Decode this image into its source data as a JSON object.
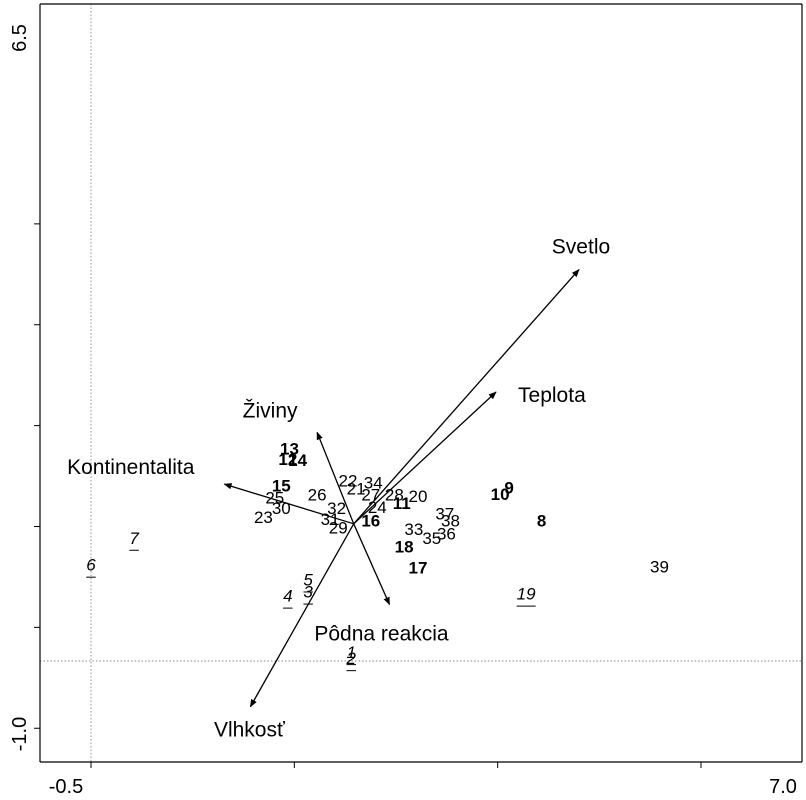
{
  "chart_data": {
    "type": "scatter",
    "subtype": "ordination-biplot",
    "xlim": [
      -0.5,
      7.0
    ],
    "ylim": [
      -1.0,
      6.5
    ],
    "x_tick_labels": [
      "-0.5",
      "7.0"
    ],
    "y_tick_labels": [
      "-1.0",
      "6.5"
    ],
    "origin": [
      2.73,
      2.04
    ],
    "reference_lines": {
      "x": -0.5,
      "y": 0.0
    },
    "vectors": [
      {
        "label": "Svetlo",
        "x": 5.5,
        "y": 5.82
      },
      {
        "label": "Teplota",
        "x": 4.48,
        "y": 4.0
      },
      {
        "label": "Živiny",
        "x": 2.28,
        "y": 3.4
      },
      {
        "label": "Kontinentalita",
        "x": 1.14,
        "y": 2.63
      },
      {
        "label": "Pôdna reakcia",
        "x": 3.17,
        "y": 0.84
      },
      {
        "label": "Vlhkosť",
        "x": 1.46,
        "y": -0.68
      }
    ],
    "points": [
      {
        "label": "1",
        "x": 2.7,
        "y": 0.11,
        "style": "italic-underline"
      },
      {
        "label": "2",
        "x": 2.7,
        "y": 0.02,
        "style": "italic-underline"
      },
      {
        "label": "3",
        "x": 2.17,
        "y": 1.01,
        "style": "italic-underline"
      },
      {
        "label": "4",
        "x": 1.92,
        "y": 0.95,
        "style": "italic-underline"
      },
      {
        "label": "5",
        "x": 2.17,
        "y": 1.19,
        "style": "italic-underline"
      },
      {
        "label": "6",
        "x": -0.5,
        "y": 1.41,
        "style": "italic-underline"
      },
      {
        "label": "7",
        "x": 0.03,
        "y": 1.81,
        "style": "italic-underline"
      },
      {
        "label": "8",
        "x": 5.04,
        "y": 2.07,
        "style": "bold"
      },
      {
        "label": "9",
        "x": 4.64,
        "y": 2.56,
        "style": "bold"
      },
      {
        "label": "10",
        "x": 4.53,
        "y": 2.46,
        "style": "bold"
      },
      {
        "label": "11",
        "x": 3.32,
        "y": 2.33,
        "style": "bold"
      },
      {
        "label": "12",
        "x": 1.92,
        "y": 2.98,
        "style": "bold"
      },
      {
        "label": "13",
        "x": 1.94,
        "y": 3.14,
        "style": "bold"
      },
      {
        "label": "14",
        "x": 2.04,
        "y": 2.97,
        "style": "bold"
      },
      {
        "label": "15",
        "x": 1.84,
        "y": 2.59,
        "style": "bold"
      },
      {
        "label": "16",
        "x": 2.94,
        "y": 2.07,
        "style": "bold"
      },
      {
        "label": "17",
        "x": 3.52,
        "y": 1.37,
        "style": "bold"
      },
      {
        "label": "18",
        "x": 3.35,
        "y": 1.68,
        "style": "bold"
      },
      {
        "label": "19",
        "x": 4.85,
        "y": 0.98,
        "style": "italic-underline"
      },
      {
        "label": "20",
        "x": 3.52,
        "y": 2.43,
        "style": "regular"
      },
      {
        "label": "21",
        "x": 2.76,
        "y": 2.54,
        "style": "regular"
      },
      {
        "label": "22",
        "x": 2.66,
        "y": 2.66,
        "style": "regular"
      },
      {
        "label": "23",
        "x": 1.62,
        "y": 2.12,
        "style": "regular"
      },
      {
        "label": "24",
        "x": 3.02,
        "y": 2.27,
        "style": "regular"
      },
      {
        "label": "25",
        "x": 1.76,
        "y": 2.41,
        "style": "regular"
      },
      {
        "label": "26",
        "x": 2.28,
        "y": 2.45,
        "style": "regular"
      },
      {
        "label": "27",
        "x": 2.94,
        "y": 2.45,
        "style": "regular"
      },
      {
        "label": "28",
        "x": 3.23,
        "y": 2.45,
        "style": "regular"
      },
      {
        "label": "29",
        "x": 2.54,
        "y": 1.96,
        "style": "regular"
      },
      {
        "label": "30",
        "x": 1.84,
        "y": 2.25,
        "style": "regular"
      },
      {
        "label": "31",
        "x": 2.44,
        "y": 2.09,
        "style": "regular"
      },
      {
        "label": "32",
        "x": 2.52,
        "y": 2.25,
        "style": "regular"
      },
      {
        "label": "33",
        "x": 3.47,
        "y": 1.94,
        "style": "regular"
      },
      {
        "label": "34",
        "x": 2.97,
        "y": 2.63,
        "style": "regular"
      },
      {
        "label": "35",
        "x": 3.69,
        "y": 1.81,
        "style": "regular"
      },
      {
        "label": "36",
        "x": 3.87,
        "y": 1.87,
        "style": "regular"
      },
      {
        "label": "37",
        "x": 3.85,
        "y": 2.17,
        "style": "regular"
      },
      {
        "label": "38",
        "x": 3.92,
        "y": 2.07,
        "style": "regular"
      },
      {
        "label": "39",
        "x": 6.49,
        "y": 1.38,
        "style": "regular"
      }
    ]
  }
}
